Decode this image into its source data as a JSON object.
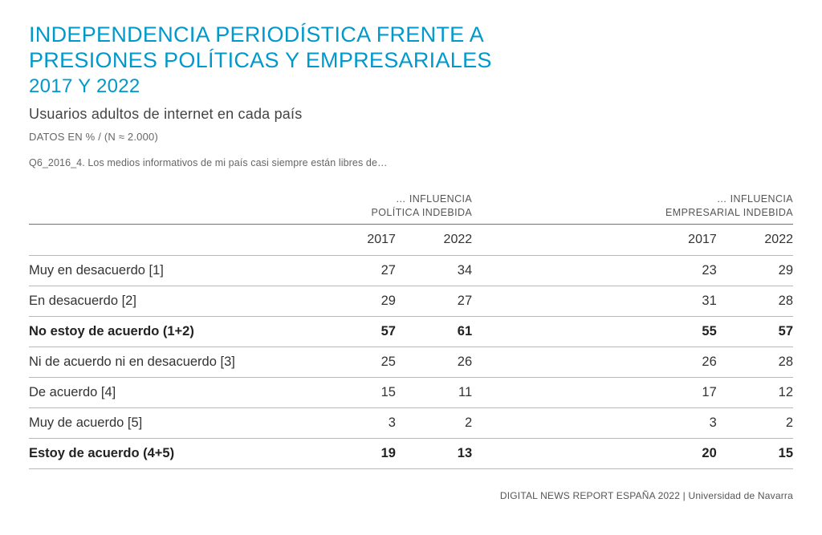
{
  "header": {
    "title_line1": "INDEPENDENCIA PERIODÍSTICA FRENTE A",
    "title_line2": "PRESIONES POLÍTICAS Y EMPRESARIALES",
    "years": "2017 Y 2022",
    "desc": "Usuarios adultos de internet en cada país",
    "meta": "DATOS EN %  /  (N ≈ 2.000)",
    "question": "Q6_2016_4. Los medios informativos de mi país casi siempre están libres de…"
  },
  "table": {
    "type": "table",
    "colors": {
      "accent": "#0099cc",
      "rule": "#b8b8b8",
      "text": "#333333",
      "background": "#ffffff"
    },
    "group_headers": [
      "… INFLUENCIA\nPOLÍTICA INDEBIDA",
      "… INFLUENCIA\nEMPRESARIAL INDEBIDA"
    ],
    "col_years": [
      "2017",
      "2022",
      "2017",
      "2022"
    ],
    "rows": [
      {
        "label": "Muy en desacuerdo [1]",
        "values": [
          "27",
          "34",
          "23",
          "29"
        ],
        "bold": false
      },
      {
        "label": "En desacuerdo [2]",
        "values": [
          "29",
          "27",
          "31",
          "28"
        ],
        "bold": false
      },
      {
        "label": "No estoy de acuerdo (1+2)",
        "values": [
          "57",
          "61",
          "55",
          "57"
        ],
        "bold": true
      },
      {
        "label": "Ni de acuerdo ni en desacuerdo [3]",
        "values": [
          "25",
          "26",
          "26",
          "28"
        ],
        "bold": false
      },
      {
        "label": "De acuerdo [4]",
        "values": [
          "15",
          "11",
          "17",
          "12"
        ],
        "bold": false
      },
      {
        "label": "Muy de acuerdo [5]",
        "values": [
          "3",
          "2",
          "3",
          "2"
        ],
        "bold": false
      },
      {
        "label": "Estoy de acuerdo (4+5)",
        "values": [
          "19",
          "13",
          "20",
          "15"
        ],
        "bold": true
      }
    ]
  },
  "footer": "DIGITAL NEWS REPORT ESPAÑA 2022 | Universidad de Navarra"
}
